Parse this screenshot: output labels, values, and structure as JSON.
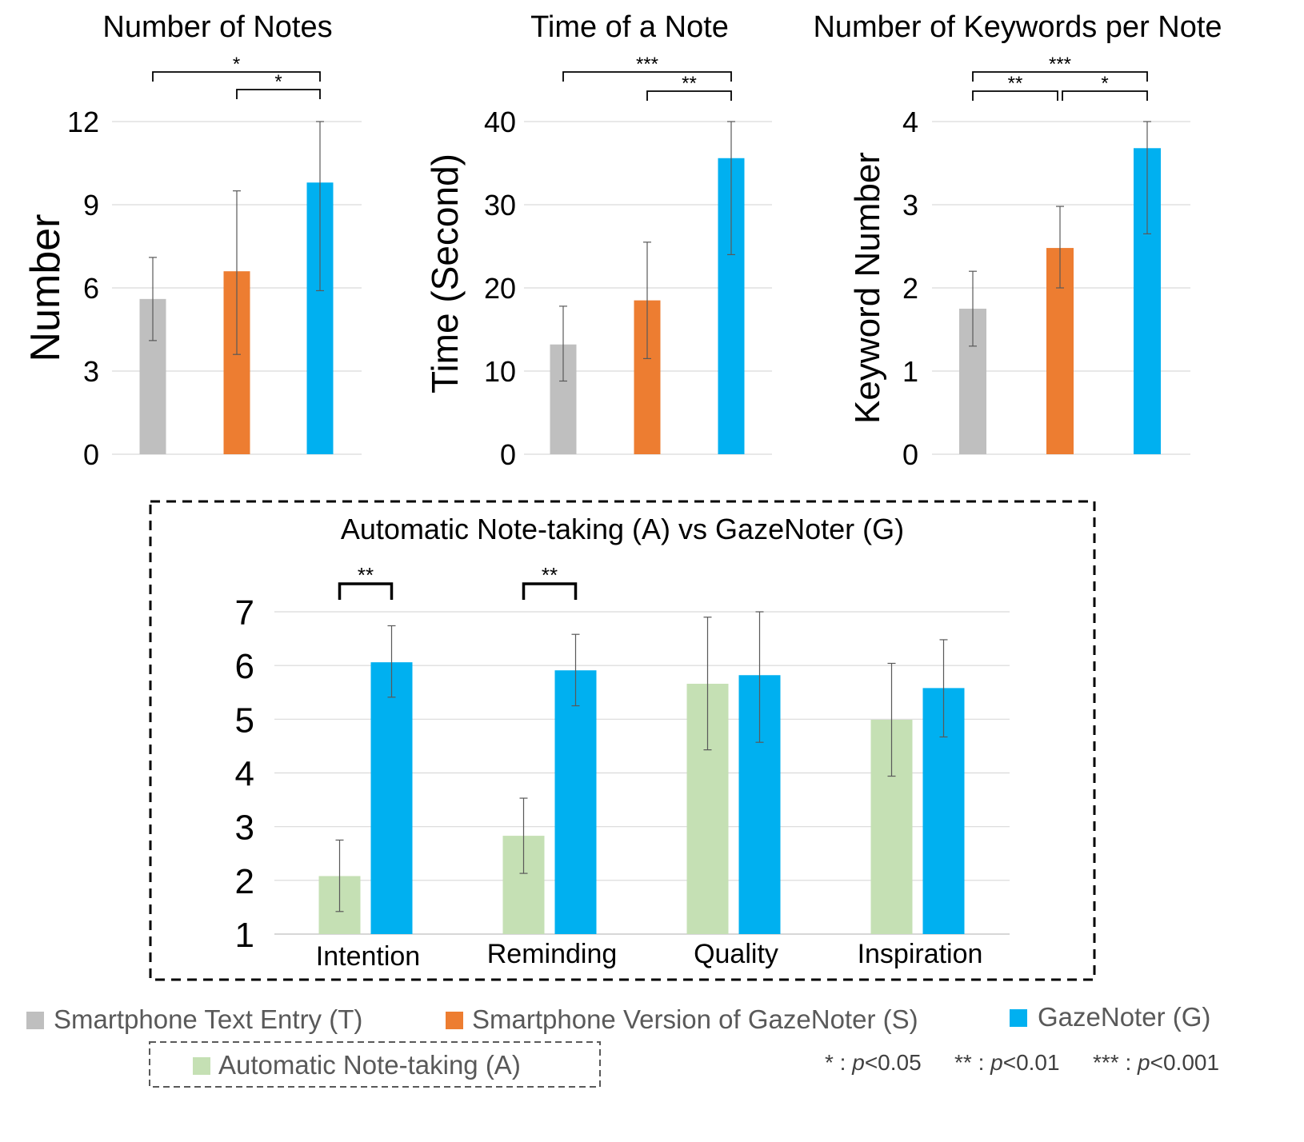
{
  "chart_data": [
    {
      "type": "bar",
      "title": "Number of Notes",
      "ylabel": "Number",
      "ylim": [
        0,
        12
      ],
      "yticks": [
        "0",
        "3",
        "6",
        "9",
        "12"
      ],
      "grid": true,
      "series": [
        {
          "name": "Smartphone Text Entry (T)",
          "value": 5.6,
          "err_low": 4.1,
          "err_high": 7.1,
          "color": "#bfbfbf"
        },
        {
          "name": "Smartphone Version of GazeNoter (S)",
          "value": 6.6,
          "err_low": 3.6,
          "err_high": 9.5,
          "color": "#ed7d31"
        },
        {
          "name": "GazeNoter (G)",
          "value": 9.8,
          "err_low": 5.9,
          "err_high": 12.0,
          "color": "#00b0f0"
        }
      ],
      "significance": [
        {
          "from": 0,
          "to": 2,
          "label": "*"
        },
        {
          "from": 1,
          "to": 2,
          "label": "*"
        }
      ]
    },
    {
      "type": "bar",
      "title": "Time of a Note",
      "ylabel": "Time (Second)",
      "ylim": [
        0,
        40
      ],
      "yticks": [
        "0",
        "10",
        "20",
        "30",
        "40"
      ],
      "grid": true,
      "series": [
        {
          "name": "Smartphone Text Entry (T)",
          "value": 13.2,
          "err_low": 8.8,
          "err_high": 17.8,
          "color": "#bfbfbf"
        },
        {
          "name": "Smartphone Version of GazeNoter (S)",
          "value": 18.5,
          "err_low": 11.5,
          "err_high": 25.5,
          "color": "#ed7d31"
        },
        {
          "name": "GazeNoter (G)",
          "value": 35.6,
          "err_low": 24.0,
          "err_high": 40.0,
          "color": "#00b0f0"
        }
      ],
      "significance": [
        {
          "from": 0,
          "to": 2,
          "label": "***"
        },
        {
          "from": 1,
          "to": 2,
          "label": "**"
        }
      ]
    },
    {
      "type": "bar",
      "title": "Number of Keywords per Note",
      "ylabel": "Keyword Number",
      "ylim": [
        0,
        4
      ],
      "yticks": [
        "0",
        "1",
        "2",
        "3",
        "4"
      ],
      "grid": true,
      "series": [
        {
          "name": "Smartphone Text Entry (T)",
          "value": 1.75,
          "err_low": 1.3,
          "err_high": 2.2,
          "color": "#bfbfbf"
        },
        {
          "name": "Smartphone Version of GazeNoter (S)",
          "value": 2.48,
          "err_low": 2.0,
          "err_high": 2.98,
          "color": "#ed7d31"
        },
        {
          "name": "GazeNoter (G)",
          "value": 3.68,
          "err_low": 2.65,
          "err_high": 4.0,
          "color": "#00b0f0"
        }
      ],
      "significance": [
        {
          "from": 0,
          "to": 2,
          "label": "***"
        },
        {
          "from": 0,
          "to": 1,
          "label": "**"
        },
        {
          "from": 1,
          "to": 2,
          "label": "*"
        }
      ]
    },
    {
      "type": "bar",
      "title": "Automatic Note-taking (A) vs GazeNoter (G)",
      "ylim": [
        1,
        7
      ],
      "yticks": [
        "1",
        "2",
        "3",
        "4",
        "5",
        "6",
        "7"
      ],
      "grid": true,
      "categories": [
        "Intention",
        "Reminding",
        "Quality",
        "Inspiration"
      ],
      "series": [
        {
          "name": "Automatic Note-taking (A)",
          "color": "#c5e0b4",
          "values": [
            2.08,
            2.83,
            5.66,
            4.99
          ],
          "err_low": [
            1.42,
            2.13,
            4.43,
            3.94
          ],
          "err_high": [
            2.75,
            3.53,
            6.9,
            6.04
          ]
        },
        {
          "name": "GazeNoter (G)",
          "color": "#00b0f0",
          "values": [
            6.06,
            5.91,
            5.82,
            5.58
          ],
          "err_low": [
            5.41,
            5.25,
            4.57,
            4.67
          ],
          "err_high": [
            6.74,
            6.58,
            7.0,
            6.48
          ]
        }
      ],
      "significance": [
        {
          "category": 0,
          "label": "**"
        },
        {
          "category": 1,
          "label": "**"
        }
      ]
    }
  ],
  "legend": {
    "items": [
      {
        "label": "Smartphone Text Entry (T)",
        "color": "#bfbfbf"
      },
      {
        "label": "Smartphone Version of GazeNoter (S)",
        "color": "#ed7d31"
      },
      {
        "label": "GazeNoter (G)",
        "color": "#00b0f0"
      },
      {
        "label": "Automatic  Note-taking (A)",
        "color": "#c5e0b4"
      }
    ],
    "pvalues": [
      {
        "stars": "* :",
        "p": "p",
        "rest": "<0.05"
      },
      {
        "stars": "** :",
        "p": "p",
        "rest": "<0.01"
      },
      {
        "stars": "*** :",
        "p": "p",
        "rest": "<0.001"
      }
    ]
  }
}
